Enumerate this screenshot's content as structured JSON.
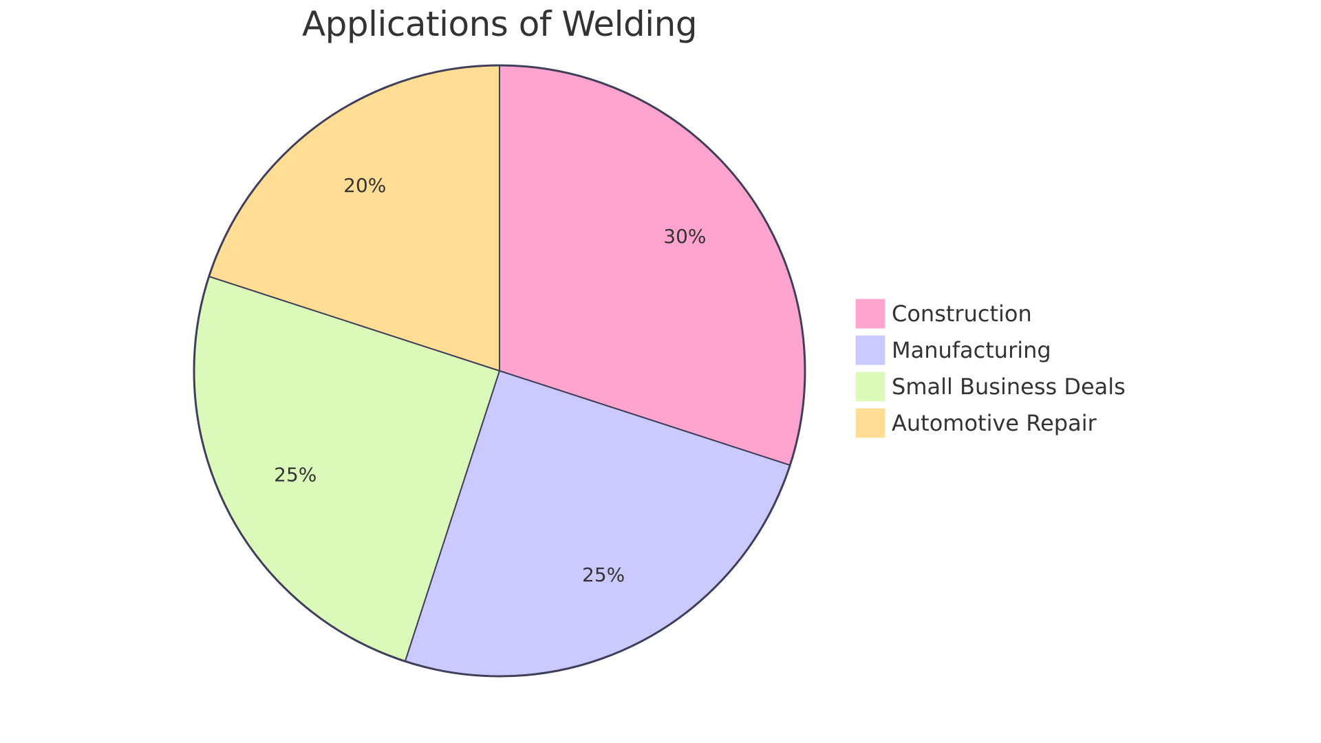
{
  "chart_data": {
    "type": "pie",
    "title": "Applications of Welding",
    "start_angle_deg": 0,
    "direction": "clockwise",
    "categories": [
      "Construction",
      "Manufacturing",
      "Small Business Deals",
      "Automotive Repair"
    ],
    "values": [
      30,
      25,
      25,
      20
    ],
    "labels": [
      "30%",
      "25%",
      "25%",
      "20%"
    ],
    "colors": [
      "#FFA3CF",
      "#CACAFF",
      "#DBF9B8",
      "#FFDD94"
    ],
    "stroke_color": "#3F3F5A",
    "legend_position": "right",
    "xlabel": "",
    "ylabel": ""
  },
  "legend": {
    "items": [
      {
        "label": "Construction",
        "color": "#FFA3CF"
      },
      {
        "label": "Manufacturing",
        "color": "#CACAFF"
      },
      {
        "label": "Small Business Deals",
        "color": "#DBF9B8"
      },
      {
        "label": "Automotive Repair",
        "color": "#FFDD94"
      }
    ]
  }
}
